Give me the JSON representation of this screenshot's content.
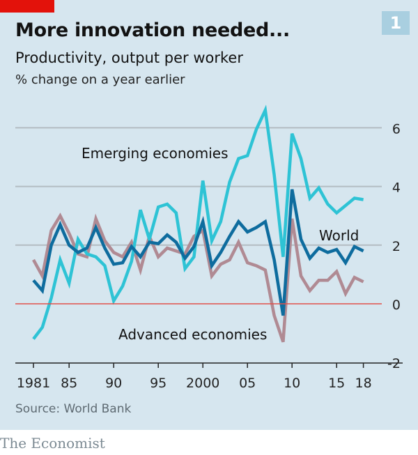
{
  "header": {
    "title": "More innovation needed...",
    "subtitle": "Productivity, output per worker",
    "unit": "% change on a year earlier",
    "chart_number": "1"
  },
  "footer": {
    "source": "Source: World Bank",
    "brand": "The Economist"
  },
  "colors": {
    "background": "#d6e6ef",
    "emerging": "#2ec3d5",
    "world": "#0e6c9e",
    "advanced": "#b08a93",
    "zero_line": "#e0504a",
    "accent": "#e3120b"
  },
  "chart_data": {
    "type": "line",
    "title": "More innovation needed...",
    "subtitle": "Productivity, output per worker",
    "ylabel": "% change on a year earlier",
    "xlim": [
      1981,
      2018
    ],
    "ylim": [
      -2,
      6
    ],
    "y_ticks": [
      6,
      4,
      2,
      0,
      -2
    ],
    "y_tick_labels": [
      "6",
      "4",
      "2",
      "0",
      "-2"
    ],
    "y_axis_side": "right",
    "x_ticks": [
      1981,
      1985,
      1990,
      1995,
      2000,
      2005,
      2010,
      2015,
      2018
    ],
    "x_tick_labels": [
      "1981",
      "85",
      "90",
      "95",
      "2000",
      "05",
      "10",
      "15",
      "18"
    ],
    "grid": true,
    "x": [
      1981,
      1982,
      1983,
      1984,
      1985,
      1986,
      1987,
      1988,
      1989,
      1990,
      1991,
      1992,
      1993,
      1994,
      1995,
      1996,
      1997,
      1998,
      1999,
      2000,
      2001,
      2002,
      2003,
      2004,
      2005,
      2006,
      2007,
      2008,
      2009,
      2010,
      2011,
      2012,
      2013,
      2014,
      2015,
      2016,
      2017,
      2018
    ],
    "series": [
      {
        "name": "Advanced economies",
        "key": "advanced",
        "values": [
          1.5,
          0.95,
          2.5,
          3.0,
          2.4,
          1.7,
          1.6,
          2.9,
          2.15,
          1.75,
          1.6,
          2.1,
          1.15,
          2.3,
          1.6,
          1.9,
          1.8,
          1.7,
          2.3,
          2.5,
          0.95,
          1.35,
          1.5,
          2.1,
          1.4,
          1.3,
          1.15,
          -0.4,
          -1.3,
          2.9,
          0.95,
          0.45,
          0.8,
          0.8,
          1.1,
          0.35,
          0.9,
          0.75
        ]
      },
      {
        "name": "Emerging economies",
        "key": "emerging",
        "values": [
          -1.2,
          -0.8,
          0.2,
          1.5,
          0.7,
          2.2,
          1.7,
          1.6,
          1.3,
          0.1,
          0.6,
          1.45,
          3.2,
          2.2,
          3.3,
          3.4,
          3.1,
          1.2,
          1.6,
          4.2,
          2.15,
          2.8,
          4.15,
          4.95,
          5.05,
          5.95,
          6.6,
          4.4,
          1.6,
          5.8,
          4.95,
          3.6,
          3.95,
          3.4,
          3.1,
          3.35,
          3.6,
          3.55
        ]
      },
      {
        "name": "World",
        "key": "world",
        "values": [
          0.8,
          0.45,
          2.0,
          2.7,
          2.0,
          1.75,
          1.9,
          2.6,
          1.9,
          1.35,
          1.4,
          1.95,
          1.6,
          2.1,
          2.05,
          2.35,
          2.1,
          1.55,
          1.95,
          2.8,
          1.3,
          1.75,
          2.3,
          2.8,
          2.45,
          2.6,
          2.8,
          1.5,
          -0.4,
          3.9,
          2.2,
          1.55,
          1.9,
          1.75,
          1.85,
          1.4,
          1.95,
          1.8
        ]
      }
    ]
  }
}
